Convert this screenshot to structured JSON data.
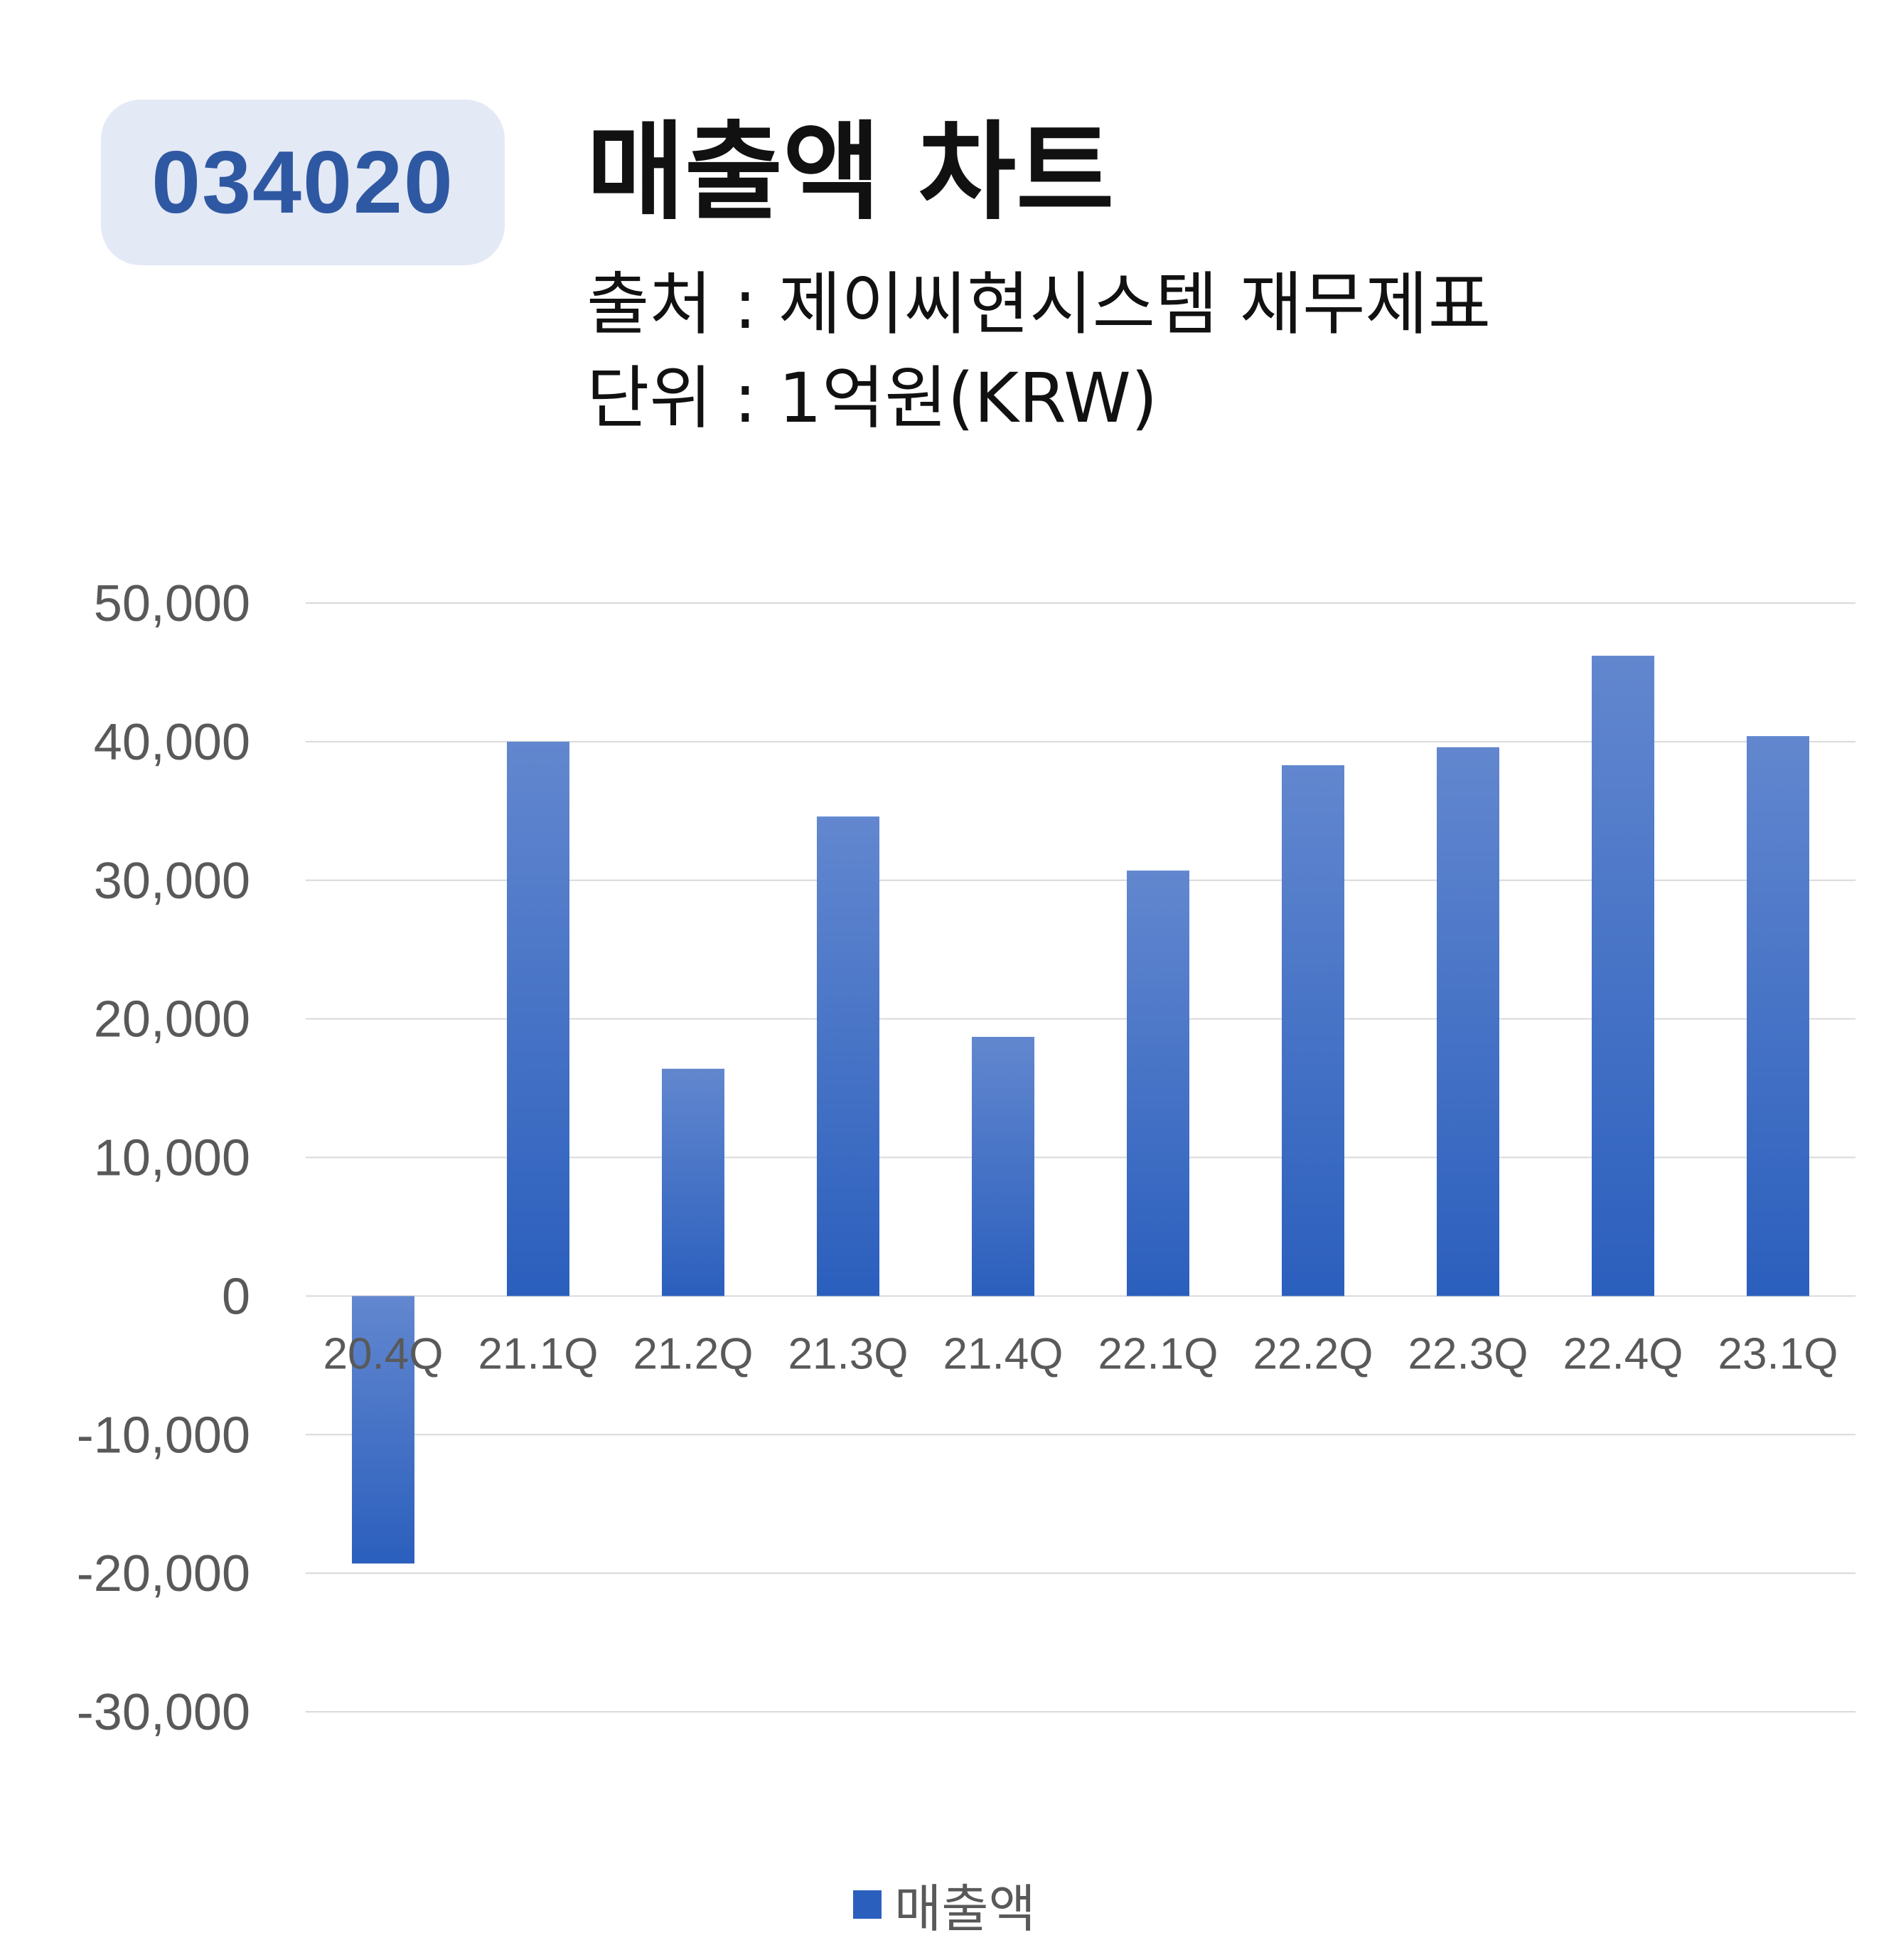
{
  "header": {
    "code": "034020",
    "title": "매출액 차트",
    "source": "출처 : 제이씨현시스템 재무제표",
    "unit": "단위 : 1억원(KRW)"
  },
  "colors": {
    "bar_top": "#6287cf",
    "bar_bottom": "#2b5fbd",
    "grid": "#d9d9d9",
    "badge_bg": "#e3e9f5",
    "badge_text": "#2f58a2"
  },
  "chart_data": {
    "type": "bar",
    "categories": [
      "20.4Q",
      "21.1Q",
      "21.2Q",
      "21.3Q",
      "21.4Q",
      "22.1Q",
      "22.2Q",
      "22.3Q",
      "22.4Q",
      "23.1Q"
    ],
    "series": [
      {
        "name": "매출액",
        "values": [
          -19300,
          40000,
          16400,
          34600,
          18700,
          30700,
          38300,
          39600,
          46200,
          40400
        ]
      }
    ],
    "yticks": [
      "50,000",
      "40,000",
      "30,000",
      "20,000",
      "10,000",
      "0",
      "-10,000",
      "-20,000",
      "-30,000"
    ],
    "ylim": [
      -30000,
      50000
    ],
    "grid": true,
    "legend_position": "bottom"
  }
}
